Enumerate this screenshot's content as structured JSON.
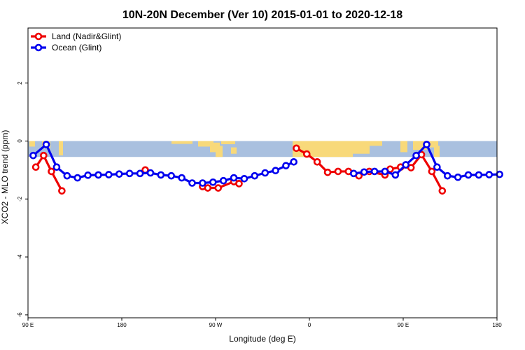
{
  "chart_data": {
    "type": "line",
    "title": "10N-20N December (Ver 10)   2015-01-01 to 2020-12-18",
    "xlabel": "Longitude (deg E)",
    "ylabel": "XCO2 - MLO trend (ppm)",
    "xlim": [
      90,
      540
    ],
    "ylim": [
      -6.1,
      3.9
    ],
    "x_ticks": [
      {
        "value": 90,
        "label": "90 E"
      },
      {
        "value": 180,
        "label": "180"
      },
      {
        "value": 270,
        "label": "90 W"
      },
      {
        "value": 360,
        "label": "0"
      },
      {
        "value": 450,
        "label": "90 E"
      },
      {
        "value": 540,
        "label": "180"
      }
    ],
    "y_ticks": [
      {
        "value": -6,
        "label": "-6"
      },
      {
        "value": -4,
        "label": "-4"
      },
      {
        "value": -2,
        "label": "-2"
      },
      {
        "value": 0,
        "label": "0"
      },
      {
        "value": 2,
        "label": "2"
      }
    ],
    "legend_position": "top-left",
    "map_strip": {
      "y_top": 0,
      "y_bottom": -0.55,
      "ocean_color": "#a9c0df",
      "land_color": "#f8d97a"
    },
    "series": [
      {
        "name": "Land (Nadir&Glint)",
        "color": "#ee0000",
        "segments": [
          [
            [
              97.5,
              -0.9
            ],
            [
              105,
              -0.5
            ],
            [
              112.5,
              -1.05
            ],
            [
              122.5,
              -1.72
            ]
          ],
          [
            [
              202.5,
              -1.0
            ]
          ],
          [
            [
              257.5,
              -1.57
            ],
            [
              262.5,
              -1.62
            ],
            [
              272.5,
              -1.62
            ],
            [
              287.5,
              -1.4
            ],
            [
              292.5,
              -1.47
            ]
          ],
          [
            [
              347.5,
              -0.25
            ],
            [
              357.5,
              -0.45
            ],
            [
              367.5,
              -0.72
            ],
            [
              377.5,
              -1.08
            ],
            [
              387.5,
              -1.05
            ],
            [
              397.5,
              -1.05
            ],
            [
              407.5,
              -1.2
            ],
            [
              417.5,
              -1.05
            ],
            [
              432.5,
              -1.17
            ],
            [
              437.5,
              -0.97
            ],
            [
              447.5,
              -0.9
            ],
            [
              457.5,
              -0.92
            ],
            [
              467.5,
              -0.47
            ],
            [
              477.5,
              -1.05
            ],
            [
              487.5,
              -1.72
            ]
          ]
        ]
      },
      {
        "name": "Ocean (Glint)",
        "color": "#0000ee",
        "segments": [
          [
            [
              95,
              -0.5
            ],
            [
              107.5,
              -0.12
            ],
            [
              117.5,
              -0.9
            ],
            [
              127.5,
              -1.2
            ],
            [
              137.5,
              -1.27
            ],
            [
              147.5,
              -1.18
            ],
            [
              157.5,
              -1.17
            ],
            [
              167.5,
              -1.16
            ],
            [
              177.5,
              -1.14
            ],
            [
              187.5,
              -1.12
            ],
            [
              197.5,
              -1.12
            ],
            [
              207.5,
              -1.1
            ],
            [
              217.5,
              -1.17
            ],
            [
              227.5,
              -1.2
            ],
            [
              237.5,
              -1.27
            ],
            [
              247.5,
              -1.45
            ],
            [
              257.5,
              -1.45
            ],
            [
              267.5,
              -1.42
            ],
            [
              277.5,
              -1.37
            ],
            [
              287.5,
              -1.27
            ],
            [
              297.5,
              -1.3
            ],
            [
              307.5,
              -1.2
            ],
            [
              317.5,
              -1.1
            ],
            [
              327.5,
              -1.02
            ],
            [
              337.5,
              -0.85
            ],
            [
              345,
              -0.72
            ]
          ],
          [
            [
              402.5,
              -1.12
            ],
            [
              412.5,
              -1.07
            ],
            [
              422.5,
              -1.05
            ],
            [
              432.5,
              -1.05
            ],
            [
              442.5,
              -1.17
            ],
            [
              452.5,
              -0.82
            ],
            [
              462.5,
              -0.5
            ],
            [
              472.5,
              -0.12
            ],
            [
              482.5,
              -0.9
            ],
            [
              492.5,
              -1.2
            ],
            [
              502.5,
              -1.25
            ],
            [
              512.5,
              -1.17
            ],
            [
              522.5,
              -1.17
            ],
            [
              532.5,
              -1.16
            ],
            [
              542.5,
              -1.15
            ]
          ]
        ]
      }
    ]
  }
}
